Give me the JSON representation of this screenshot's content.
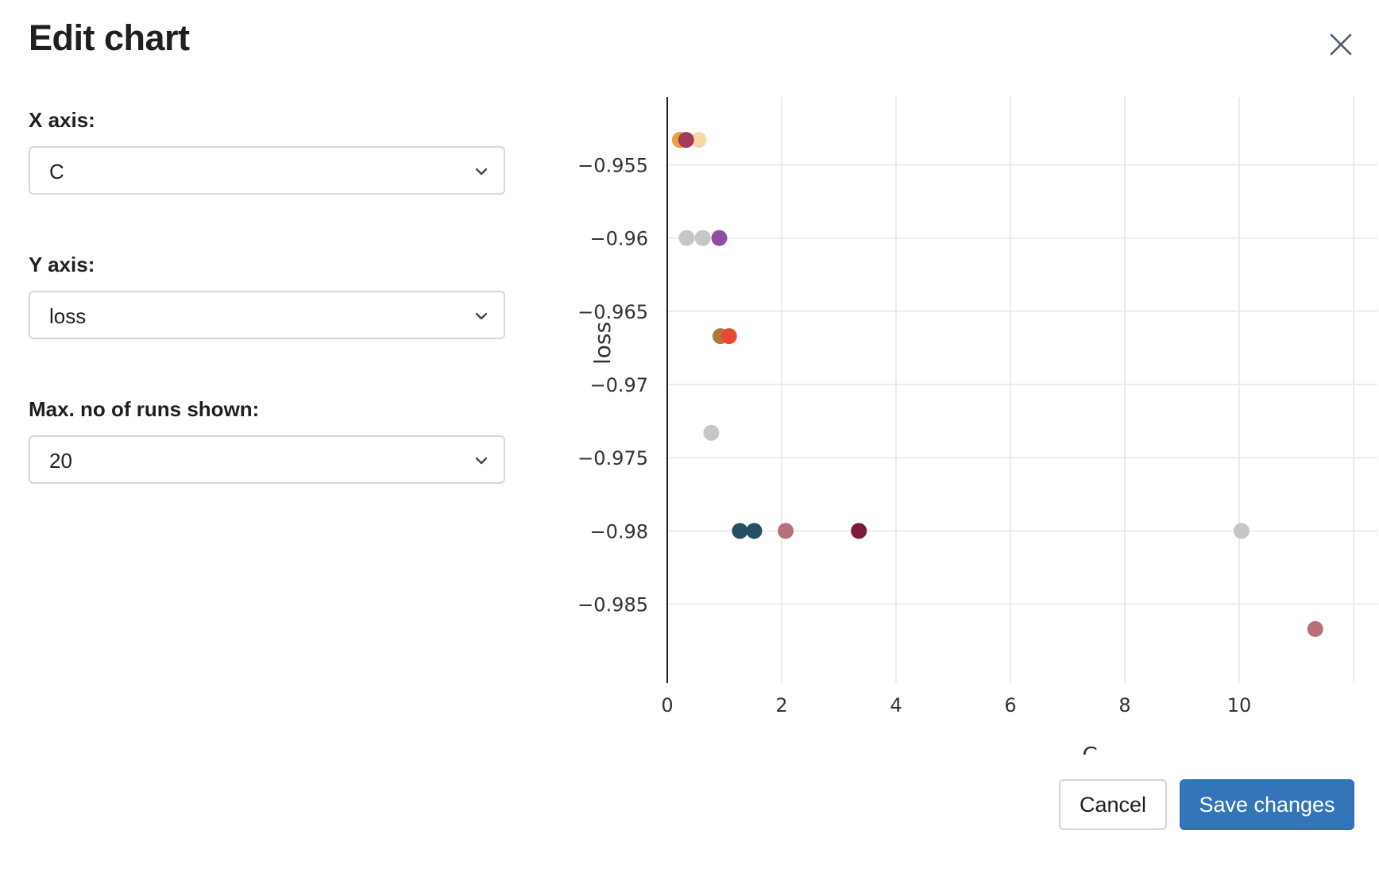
{
  "dialog": {
    "title": "Edit chart",
    "close_icon": "close-icon"
  },
  "form": {
    "x_axis": {
      "label": "X axis:",
      "value": "C"
    },
    "y_axis": {
      "label": "Y axis:",
      "value": "loss"
    },
    "max_runs": {
      "label": "Max. no of runs shown:",
      "value": "20"
    },
    "chevron_icon": "chevron-down-icon"
  },
  "buttons": {
    "cancel": "Cancel",
    "save": "Save changes"
  },
  "colors": {
    "primary": "#3474b8",
    "gridline": "#ebebeb",
    "axis": "#222222"
  },
  "chart_data": {
    "type": "scatter",
    "xlabel": "C",
    "ylabel": "loss",
    "xlim": [
      0,
      12
    ],
    "ylim": [
      -0.9892,
      -0.9508
    ],
    "x_ticks": [
      0,
      2,
      4,
      6,
      8,
      10
    ],
    "x_tick_labels": [
      "0",
      "2",
      "4",
      "6",
      "8",
      "10"
    ],
    "y_ticks": [
      -0.955,
      -0.96,
      -0.965,
      -0.97,
      -0.975,
      -0.98,
      -0.985
    ],
    "y_tick_labels": [
      "−0.955",
      "−0.96",
      "−0.965",
      "−0.97",
      "−0.975",
      "−0.98",
      "−0.985"
    ],
    "grid": true,
    "points": [
      {
        "x": 0.22,
        "y": -0.9533,
        "color": "#e8a33d"
      },
      {
        "x": 0.55,
        "y": -0.9533,
        "color": "#f6d9a6"
      },
      {
        "x": 0.33,
        "y": -0.9533,
        "color": "#a23b5b"
      },
      {
        "x": 0.34,
        "y": -0.96,
        "color": "#c6c6c6"
      },
      {
        "x": 0.62,
        "y": -0.96,
        "color": "#c6c6c6"
      },
      {
        "x": 0.91,
        "y": -0.96,
        "color": "#8d4fa5"
      },
      {
        "x": 0.93,
        "y": -0.9667,
        "color": "#b0773f"
      },
      {
        "x": 1.08,
        "y": -0.9667,
        "color": "#e8492f"
      },
      {
        "x": 0.77,
        "y": -0.9733,
        "color": "#c6c6c6"
      },
      {
        "x": 1.27,
        "y": -0.98,
        "color": "#264f61"
      },
      {
        "x": 1.52,
        "y": -0.98,
        "color": "#264f61"
      },
      {
        "x": 2.07,
        "y": -0.98,
        "color": "#b7717b"
      },
      {
        "x": 3.35,
        "y": -0.98,
        "color": "#7a1b38"
      },
      {
        "x": 10.04,
        "y": -0.98,
        "color": "#c6c6c6"
      },
      {
        "x": 11.33,
        "y": -0.9867,
        "color": "#b7717b"
      }
    ]
  }
}
